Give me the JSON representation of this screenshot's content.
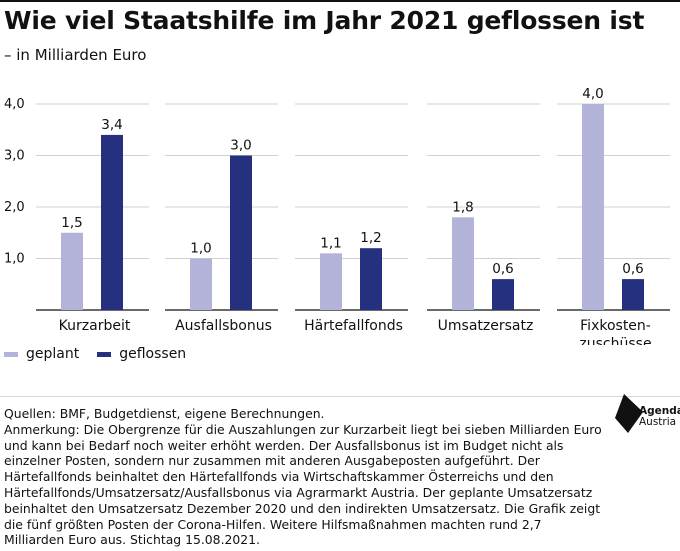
{
  "title": "Wie viel Staatshilfe im Jahr 2021 geflossen ist",
  "subtitle": "– in Milliarden Euro",
  "colors": {
    "geplant": "#b3b2d8",
    "geflossen": "#25317f"
  },
  "chart_data": {
    "type": "bar",
    "categories": [
      [
        "Kurzarbeit"
      ],
      [
        "Ausfallsbonus"
      ],
      [
        "Härtefallfonds"
      ],
      [
        "Umsatzersatz"
      ],
      [
        "Fixkosten-",
        "zuschüsse"
      ]
    ],
    "series": [
      {
        "name": "geplant",
        "values": [
          1.5,
          1.0,
          1.1,
          1.8,
          4.0
        ],
        "labels": [
          "1,5",
          "1,0",
          "1,1",
          "1,8",
          "4,0"
        ]
      },
      {
        "name": "geflossen",
        "values": [
          3.4,
          3.0,
          1.2,
          0.6,
          0.6
        ],
        "labels": [
          "3,4",
          "3,0",
          "1,2",
          "0,6",
          "0,6"
        ]
      }
    ],
    "yticks": [
      1.0,
      2.0,
      3.0,
      4.0
    ],
    "ytick_labels": [
      "1,0",
      "2,0",
      "3,0",
      "4,0"
    ],
    "ylim": [
      0,
      4.0
    ],
    "grid": true,
    "legend_position": "bottom-left"
  },
  "footer": {
    "sources": "Quellen: BMF, Budgetdienst, eigene Berechnungen.",
    "note": "Anmerkung: Die Obergrenze für die Auszahlungen zur Kurzarbeit liegt bei sieben Milliarden Euro und kann bei Bedarf noch weiter erhöht werden. Der Ausfallsbonus ist im Budget nicht als einzelner Posten, sondern nur zusammen mit anderen Ausgabeposten aufgeführt. Der Härtefallfonds beinhaltet den Härtefallfonds via Wirtschaftskammer Österreichs und den Härtefallfonds/Umsatzersatz/Ausfallsbonus via Agrarmarkt Austria. Der geplante Umsatzersatz beinhaltet den Umsatzersatz Dezember 2020 und den indirekten Umsatzersatz. Die Grafik zeigt die fünf größten Posten der Corona-Hilfen. Weitere Hilfsmaßnahmen machten rund 2,7 Milliarden Euro aus. Stichtag 15.08.2021."
  },
  "logo": {
    "line1": "Agenda",
    "line2": "Austria"
  }
}
